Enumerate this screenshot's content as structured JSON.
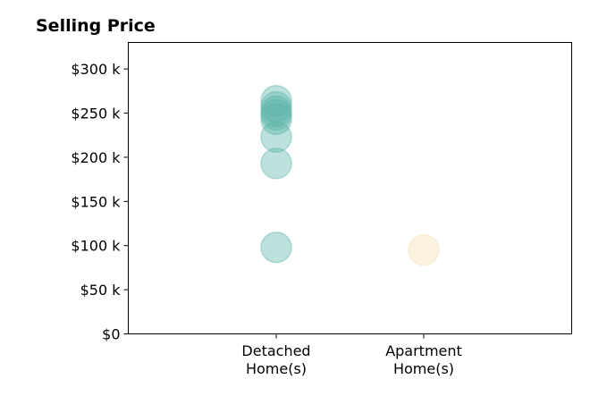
{
  "chart_data": {
    "type": "scatter",
    "title": "Selling Price",
    "xlabel": "",
    "ylabel": "",
    "categories": [
      {
        "lines": [
          "Detached",
          "Home(s)"
        ]
      },
      {
        "lines": [
          "Apartment",
          "Home(s)"
        ]
      }
    ],
    "ylim": [
      0,
      330000
    ],
    "yticks": [
      {
        "value": 0,
        "label": "$0"
      },
      {
        "value": 50000,
        "label": "$50 k"
      },
      {
        "value": 100000,
        "label": "$100 k"
      },
      {
        "value": 150000,
        "label": "$150 k"
      },
      {
        "value": 200000,
        "label": "$200 k"
      },
      {
        "value": 250000,
        "label": "$250 k"
      },
      {
        "value": 300000,
        "label": "$300 k"
      }
    ],
    "grid": false,
    "legend": "none",
    "series": [
      {
        "category": 0,
        "color": "#5ab4a8",
        "values": [
          264000,
          257000,
          252000,
          248000,
          243000,
          223000,
          193000,
          98000
        ]
      },
      {
        "category": 1,
        "color": "#f5deae",
        "values": [
          95000
        ]
      }
    ]
  }
}
